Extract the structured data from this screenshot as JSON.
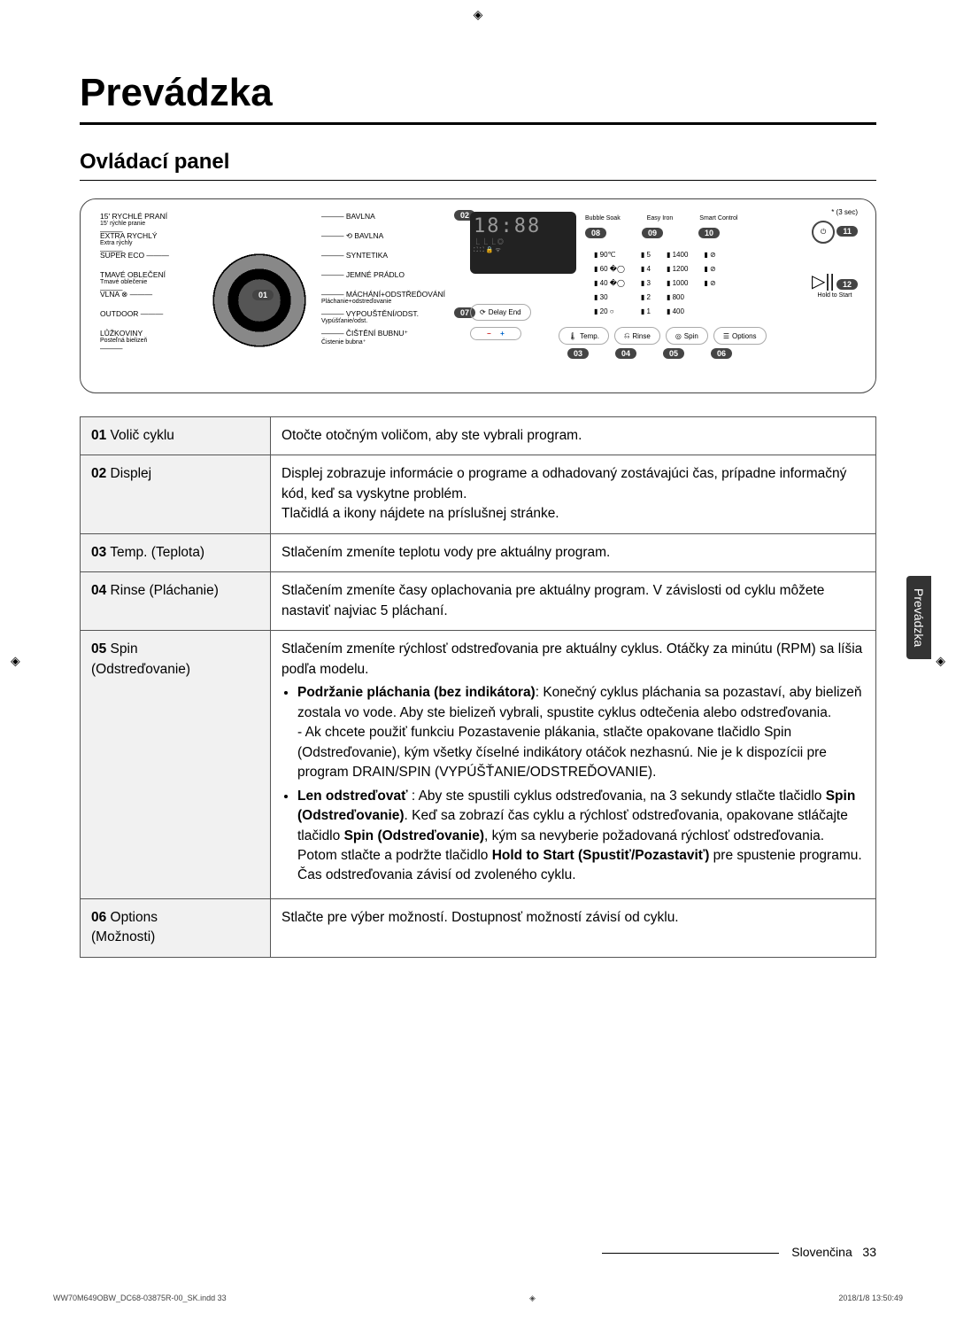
{
  "page": {
    "title": "Prevádzka",
    "section": "Ovládací panel",
    "side_tab": "Prevádzka",
    "footer_lang": "Slovenčina",
    "footer_page": "33",
    "print_left": "WW70M649OBW_DC68-03875R-00_SK.indd   33",
    "print_right": "2018/1/8   13:50:49"
  },
  "panel": {
    "hold_note": "* (3 sec)",
    "dial_left": [
      {
        "main": "15' RYCHLÉ PRANÍ",
        "sub": "15' rýchle pranie"
      },
      {
        "main": "EXTRA RYCHLÝ",
        "sub": "Extra rýchly"
      },
      {
        "main": "SUPER ECO",
        "sub": ""
      },
      {
        "main": "TMAVÉ OBLEČENÍ",
        "sub": "Tmavé oblečenie"
      },
      {
        "main": "VLNA ⊗",
        "sub": ""
      },
      {
        "main": "OUTDOOR",
        "sub": ""
      },
      {
        "main": "LŮŽKOVINY",
        "sub": "Posteľná bielizeň"
      }
    ],
    "dial_right": [
      {
        "main": "BAVLNA",
        "sub": ""
      },
      {
        "main": "⟲ BAVLNA",
        "sub": ""
      },
      {
        "main": "SYNTETIKA",
        "sub": ""
      },
      {
        "main": "JEMNÉ PRÁDLO",
        "sub": ""
      },
      {
        "main": "MÁCHÁNÍ+ODSTŘEĎOVÁNÍ",
        "sub": "Pláchanie+odstreďovanie"
      },
      {
        "main": "VYPOUŠTĚNÍ/ODST.",
        "sub": "Vypúšťanie/odst."
      },
      {
        "main": "ČIŠTĚNÍ BUBNU⁺",
        "sub": "Čistenie bubna⁺"
      }
    ],
    "dial_num": "01",
    "display": {
      "callouts": [
        "02",
        "03",
        "04",
        "05",
        "06",
        "07",
        "08",
        "09",
        "10",
        "11",
        "12"
      ],
      "segment": "18:88",
      "bubble": "Bubble Soak",
      "easy_iron": "Easy Iron",
      "smart": "Smart Control",
      "delay": "Delay End",
      "temps": [
        "90℃",
        "60 �◯",
        "40 �◯",
        "30",
        "20 ○"
      ],
      "rinses": [
        "5",
        "4",
        "3",
        "2",
        "1"
      ],
      "spins": [
        "1400",
        "1200",
        "1000",
        "800",
        "400"
      ],
      "buttons": [
        "Temp.",
        "Rinse",
        "Spin",
        "Options"
      ],
      "hold": "Hold to Start"
    }
  },
  "table": {
    "rows": [
      {
        "num": "01",
        "label": "Volič cyklu",
        "body_html": "Otočte otočným voličom, aby ste vybrali program."
      },
      {
        "num": "02",
        "label": "Displej",
        "body_html": "Displej zobrazuje informácie o programe a odhadovaný zostávajúci čas, prípadne informačný kód, keď sa vyskytne problém.<br>Tlačidlá a ikony nájdete na príslušnej stránke."
      },
      {
        "num": "03",
        "label": "Temp. (Teplota)",
        "body_html": "Stlačením zmeníte teplotu vody pre aktuálny program."
      },
      {
        "num": "04",
        "label": "Rinse (Pláchanie)",
        "body_html": "Stlačením zmeníte časy oplachovania pre aktuálny program. V závislosti od cyklu môžete nastaviť najviac 5 pláchaní."
      },
      {
        "num": "05",
        "label": "Spin<br>(Odstreďovanie)",
        "body_html": "Stlačením zmeníte rýchlosť odstreďovania pre aktuálny cyklus. Otáčky za minútu (RPM) sa líšia podľa modelu.<ul><li><span class=\"bold\">Podržanie pláchania (bez indikátora)</span>: Konečný cyklus pláchania sa pozastaví, aby bielizeň zostala vo vode. Aby ste bielizeň vybrali, spustite cyklus odtečenia alebo odstreďovania.<br>- Ak chcete použiť funkciu Pozastavenie plákania, stlačte opakovane tlačidlo Spin (Odstreďovanie), kým všetky číselné indikátory otáčok nezhasnú. Nie je k dispozícii pre program DRAIN/SPIN (VYPÚŠŤANIE/ODSTREĎOVANIE).</li><li><span class=\"bold\">Len odstreďovať</span> : Aby ste spustili cyklus odstreďovania, na 3 sekundy stlačte tlačidlo <span class=\"bold\">Spin (Odstreďovanie)</span>. Keď sa zobrazí čas cyklu a rýchlosť odstreďovania, opakovane stláčajte tlačidlo <span class=\"bold\">Spin (Odstreďovanie)</span>, kým sa nevyberie požadovaná rýchlosť odstreďovania. Potom stlačte a podržte tlačidlo <span class=\"bold\">Hold to Start (Spustiť/Pozastaviť)</span> pre spustenie programu. Čas odstreďovania závisí od zvoleného cyklu.</li></ul>"
      },
      {
        "num": "06",
        "label": "Options<br>(Možnosti)",
        "body_html": "Stlačte pre výber možností. Dostupnosť možností závisí od cyklu."
      }
    ]
  }
}
